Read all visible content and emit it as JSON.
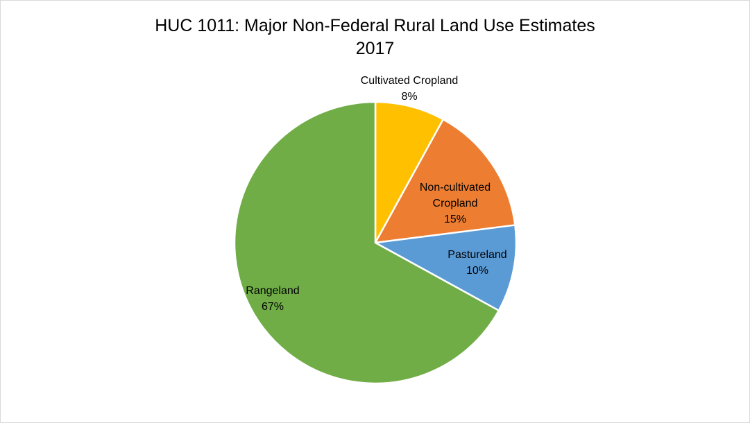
{
  "chart_data": {
    "type": "pie",
    "title": "HUC 1011: Major Non-Federal Rural Land Use Estimates",
    "subtitle": "2017",
    "slices": [
      {
        "name": "Cultivated Cropland",
        "label_lines": [
          "Cultivated Cropland"
        ],
        "value": 8,
        "value_label": "8%",
        "color": "#FFC000"
      },
      {
        "name": "Non-cultivated Cropland",
        "label_lines": [
          "Non-cultivated",
          "Cropland"
        ],
        "value": 15,
        "value_label": "15%",
        "color": "#ED7D31"
      },
      {
        "name": "Pastureland",
        "label_lines": [
          "Pastureland"
        ],
        "value": 10,
        "value_label": "10%",
        "color": "#5B9BD5"
      },
      {
        "name": "Rangeland",
        "label_lines": [
          "Rangeland"
        ],
        "value": 67,
        "value_label": "67%",
        "color": "#70AD47"
      }
    ],
    "start_angle": "12 o'clock",
    "direction": "clockwise",
    "legend": "none",
    "data_labels": "category name and percentage"
  }
}
